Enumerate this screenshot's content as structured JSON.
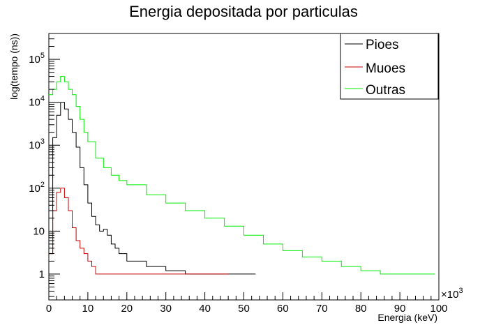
{
  "chart_data": {
    "type": "line",
    "title": "Energia depositada por particulas",
    "xlabel": "Energia (keV)",
    "ylabel": "log(tempo (ns))",
    "x_multiplier_label": "×10",
    "x_multiplier_exp": "3",
    "xlim": [
      0,
      100000
    ],
    "ylim": [
      0.25,
      400000
    ],
    "yscale": "log",
    "x_ticks": [
      "0",
      "10",
      "20",
      "30",
      "40",
      "50",
      "60",
      "70",
      "80",
      "90",
      "100"
    ],
    "x_tick_values": [
      0,
      10000,
      20000,
      30000,
      40000,
      50000,
      60000,
      70000,
      80000,
      90000,
      100000
    ],
    "y_ticks": [
      {
        "value": 1,
        "base": "1",
        "exp": ""
      },
      {
        "value": 10,
        "base": "10",
        "exp": ""
      },
      {
        "value": 100,
        "base": "10",
        "exp": "2"
      },
      {
        "value": 1000,
        "base": "10",
        "exp": "3"
      },
      {
        "value": 10000,
        "base": "10",
        "exp": "4"
      },
      {
        "value": 100000,
        "base": "10",
        "exp": "5"
      }
    ],
    "grid": false,
    "legend_position": "top-right",
    "series": [
      {
        "name": "Pioes",
        "color": "#000000",
        "x": [
          0,
          1000,
          2000,
          3000,
          4000,
          5000,
          6000,
          7000,
          8000,
          9000,
          10000,
          11000,
          12000,
          13000,
          14000,
          15000,
          16000,
          17000,
          18000,
          20000,
          22000,
          25000,
          30000,
          35000,
          40000,
          45000,
          50000,
          52000
        ],
        "y": [
          3,
          1500,
          5000,
          10000,
          7000,
          4000,
          2000,
          900,
          300,
          120,
          45,
          22,
          14,
          10,
          11,
          8,
          5,
          4,
          3,
          2,
          2,
          1.5,
          1.2,
          1,
          1,
          1,
          1,
          1
        ]
      },
      {
        "name": "Muoes",
        "color": "#cc0000",
        "x": [
          0,
          1000,
          2000,
          3000,
          4000,
          5000,
          6000,
          7000,
          8000,
          9000,
          10000,
          11000,
          12000,
          14000,
          16000,
          20000,
          25000,
          30000,
          35000,
          40000,
          45000
        ],
        "y": [
          3,
          30,
          80,
          100,
          60,
          30,
          12,
          6,
          4,
          3,
          2,
          1.5,
          1,
          1,
          1,
          1,
          1,
          1,
          1,
          1,
          1
        ]
      },
      {
        "name": "Outras",
        "color": "#00ee00",
        "x": [
          0,
          1000,
          2000,
          3000,
          4000,
          5000,
          6000,
          7000,
          8000,
          9000,
          10000,
          12000,
          14000,
          16000,
          18000,
          20000,
          25000,
          30000,
          35000,
          40000,
          45000,
          50000,
          55000,
          60000,
          65000,
          70000,
          75000,
          80000,
          85000,
          90000,
          95000,
          98000
        ],
        "y": [
          15000,
          20000,
          30000,
          40000,
          30000,
          20000,
          15000,
          8000,
          4000,
          2000,
          1200,
          500,
          300,
          200,
          150,
          120,
          70,
          45,
          30,
          20,
          13,
          8,
          5,
          3.5,
          2.5,
          2,
          1.5,
          1.2,
          1,
          1,
          1,
          1
        ]
      }
    ]
  }
}
